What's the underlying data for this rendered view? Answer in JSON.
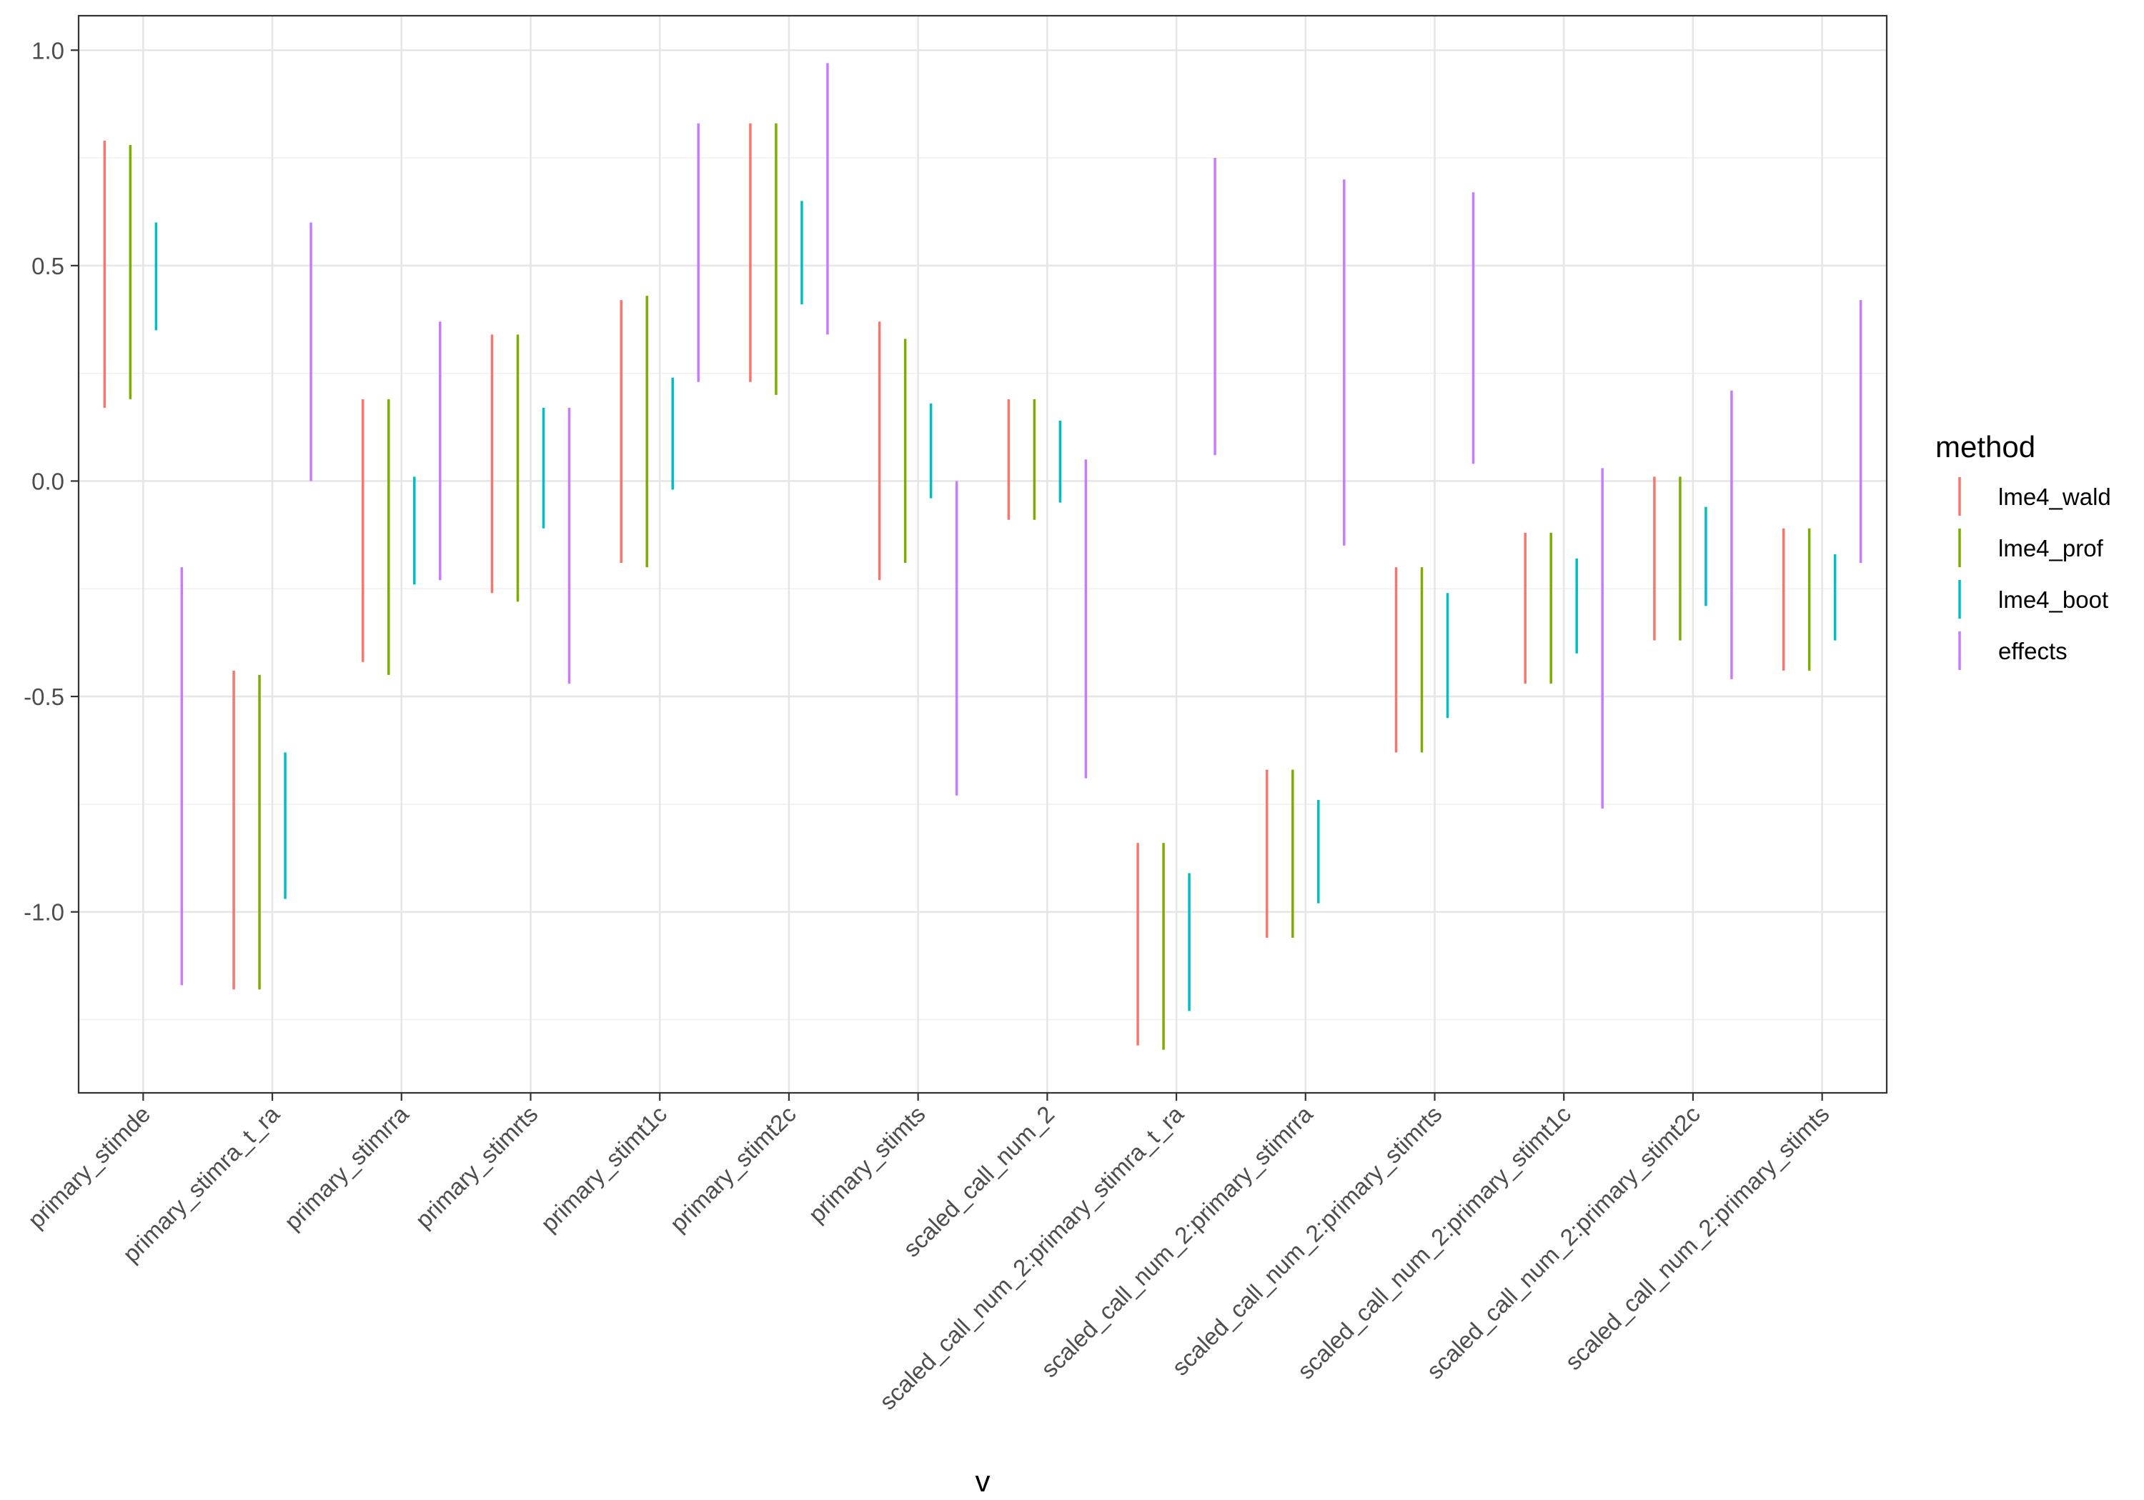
{
  "chart_data": {
    "type": "errorbar",
    "xlabel": "v",
    "ylabel": "",
    "ylim": [
      -1.42,
      1.08
    ],
    "yticks": [
      -1.0,
      -0.5,
      0.0,
      0.5,
      1.0
    ],
    "ytick_labels": [
      "-1.0",
      "-0.5",
      "0.0",
      "0.5",
      "1.0"
    ],
    "grid": true,
    "legend_position": "right",
    "categories": [
      "primary_stimde",
      "primary_stimra_t_ra",
      "primary_stimrra",
      "primary_stimrts",
      "primary_stimt1c",
      "primary_stimt2c",
      "primary_stimts",
      "scaled_call_num_2",
      "scaled_call_num_2:primary_stimra_t_ra",
      "scaled_call_num_2:primary_stimrra",
      "scaled_call_num_2:primary_stimrts",
      "scaled_call_num_2:primary_stimt1c",
      "scaled_call_num_2:primary_stimt2c",
      "scaled_call_num_2:primary_stimts"
    ],
    "legend": {
      "title": "method"
    },
    "series": [
      {
        "name": "lme4_wald",
        "color": "#F8766D",
        "lower": [
          0.17,
          -1.18,
          -0.42,
          -0.26,
          -0.19,
          0.23,
          -0.23,
          -0.09,
          -1.31,
          -1.06,
          -0.63,
          -0.47,
          -0.37,
          -0.44
        ],
        "upper": [
          0.79,
          -0.44,
          0.19,
          0.34,
          0.42,
          0.83,
          0.37,
          0.19,
          -0.84,
          -0.67,
          -0.2,
          -0.12,
          0.01,
          -0.11
        ]
      },
      {
        "name": "lme4_prof",
        "color": "#7CAE00",
        "lower": [
          0.19,
          -1.18,
          -0.45,
          -0.28,
          -0.2,
          0.2,
          -0.19,
          -0.09,
          -1.32,
          -1.06,
          -0.63,
          -0.47,
          -0.37,
          -0.44
        ],
        "upper": [
          0.78,
          -0.45,
          0.19,
          0.34,
          0.43,
          0.83,
          0.33,
          0.19,
          -0.84,
          -0.67,
          -0.2,
          -0.12,
          0.01,
          -0.11
        ]
      },
      {
        "name": "lme4_boot",
        "color": "#00BFC4",
        "lower": [
          0.35,
          -0.97,
          -0.24,
          -0.11,
          -0.02,
          0.41,
          -0.04,
          -0.05,
          -1.23,
          -0.98,
          -0.55,
          -0.4,
          -0.29,
          -0.37
        ],
        "upper": [
          0.6,
          -0.63,
          0.01,
          0.17,
          0.24,
          0.65,
          0.18,
          0.14,
          -0.91,
          -0.74,
          -0.26,
          -0.18,
          -0.06,
          -0.17
        ]
      },
      {
        "name": "effects",
        "color": "#C77CFF",
        "lower": [
          -1.17,
          0.0,
          -0.23,
          -0.47,
          0.23,
          0.34,
          -0.73,
          -0.69,
          0.06,
          -0.15,
          0.04,
          -0.76,
          -0.46,
          -0.19
        ],
        "upper": [
          -0.2,
          0.6,
          0.37,
          0.17,
          0.83,
          0.97,
          0.0,
          0.05,
          0.75,
          0.7,
          0.67,
          0.03,
          0.21,
          0.42
        ]
      }
    ]
  }
}
